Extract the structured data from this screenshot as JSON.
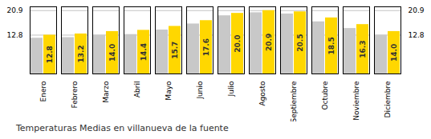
{
  "chart_data": {
    "type": "bar",
    "title": "Temperaturas Medias en villanueva de la fuente",
    "categories": [
      "Enero",
      "Febrero",
      "Marzo",
      "Abril",
      "Mayo",
      "Junio",
      "Julio",
      "Agosto",
      "Septiembre",
      "Octubre",
      "Noviembre",
      "Diciembre"
    ],
    "series": [
      {
        "color": "#C8C8C8",
        "values": [
          11.8,
          12.0,
          12.8,
          13.0,
          14.5,
          16.5,
          19.2,
          20.2,
          19.8,
          17.2,
          15.0,
          12.8
        ]
      },
      {
        "color": "#FFD700",
        "values": [
          12.8,
          13.2,
          14.0,
          14.4,
          15.7,
          17.6,
          20.0,
          20.9,
          20.5,
          18.5,
          16.3,
          14.0
        ],
        "data_labels": true,
        "value_labels": [
          "12.8",
          "13.2",
          "14.0",
          "14.4",
          "15.7",
          "17.6",
          "20.0",
          "20.9",
          "20.5",
          "18.5",
          "16.3",
          "14.0"
        ]
      }
    ],
    "ylim": [
      0,
      22.154
    ],
    "yticks": [
      12.8,
      20.9
    ],
    "y2lim": [
      0,
      22.154
    ],
    "y2ticks": [
      12.8,
      20.9
    ],
    "grid": true
  }
}
